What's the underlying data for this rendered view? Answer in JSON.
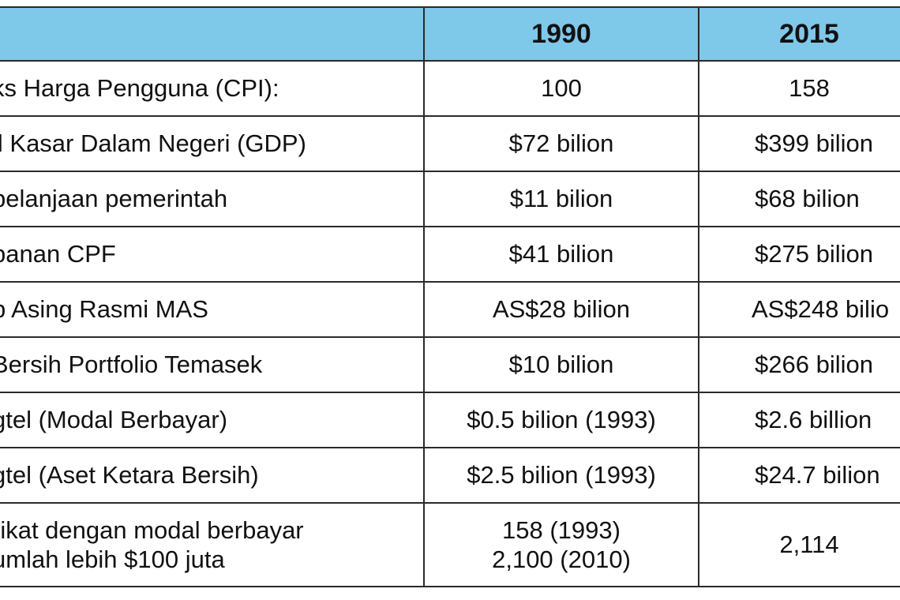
{
  "table": {
    "headers": [
      "",
      "1990",
      "2015"
    ],
    "rows": [
      {
        "label": "ks Harga Pengguna (CPI):",
        "y1990": "100",
        "y2015": "158"
      },
      {
        "label": "il Kasar Dalam Negeri (GDP)",
        "y1990": "$72 bilion",
        "y2015": "$399 bilion"
      },
      {
        "label": "pelanjaan pemerintah",
        "y1990": "$11 bilion",
        "y2015": "$68 bilion"
      },
      {
        "label": "panan CPF",
        "y1990": "$41 bilion",
        "y2015": "$275 bilion"
      },
      {
        "label": "b Asing Rasmi MAS",
        "y1990": "AS$28 bilion",
        "y2015": "AS$248 bilio"
      },
      {
        "label": "Bersih Portfolio Temasek",
        "y1990": "$10 bilion",
        "y2015": "$266 bilion"
      },
      {
        "label": "gtel (Modal Berbayar)",
        "y1990": "$0.5 bilion (1993)",
        "y2015": "$2.6 billion"
      },
      {
        "label": "gtel (Aset Ketara Bersih)",
        "y1990": "$2.5 bilion (1993)",
        "y2015": "$24.7 bilion"
      },
      {
        "label_lines": [
          "rikat dengan modal berbayar",
          "umlah lebih $100 juta"
        ],
        "y1990_lines": [
          "158 (1993)",
          "2,100 (2010)"
        ],
        "y2015": "2,114"
      }
    ]
  },
  "colors": {
    "header_bg": "#7ec8ea",
    "border": "#2a2a2a"
  }
}
